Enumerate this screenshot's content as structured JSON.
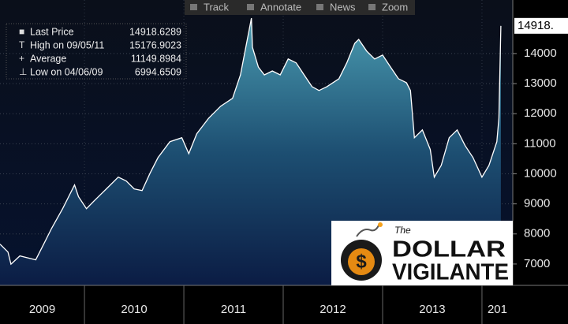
{
  "toolbar": [
    "Track",
    "Annotate",
    "News",
    "Zoom"
  ],
  "logo": {
    "small": "The",
    "line1": "DOLLAR",
    "line2": "VIGILANTE",
    "symbol": "$"
  },
  "chart_data": {
    "type": "area",
    "legend": [
      {
        "label": "Last Price",
        "value": 14918.6289
      },
      {
        "label": "High on 09/05/11",
        "value": 15176.9023
      },
      {
        "label": "Average",
        "value": 11149.8984
      },
      {
        "label": "Low on 04/06/09",
        "value": 6994.6509
      }
    ],
    "last_label": "14918.",
    "color": "#ffffff",
    "x": [
      2009.15,
      2009.23,
      2009.26,
      2009.35,
      2009.51,
      2009.59,
      2009.67,
      2009.78,
      2009.9,
      2009.94,
      2010.02,
      2010.1,
      2010.22,
      2010.34,
      2010.42,
      2010.5,
      2010.58,
      2010.66,
      2010.74,
      2010.86,
      2010.98,
      2011.05,
      2011.13,
      2011.25,
      2011.37,
      2011.49,
      2011.57,
      2011.68,
      2011.69,
      2011.75,
      2011.81,
      2011.89,
      2011.97,
      2012.05,
      2012.13,
      2012.21,
      2012.29,
      2012.36,
      2012.44,
      2012.56,
      2012.64,
      2012.72,
      2012.76,
      2012.84,
      2012.92,
      2013.0,
      2013.08,
      2013.16,
      2013.24,
      2013.28,
      2013.32,
      2013.4,
      2013.48,
      2013.52,
      2013.59,
      2013.67,
      2013.75,
      2013.83,
      2013.91,
      2014.0,
      2014.07,
      2014.15,
      2014.17,
      2014.19
    ],
    "values": [
      7660,
      7400,
      6995,
      7270,
      7140,
      7660,
      8190,
      8840,
      9630,
      9240,
      8840,
      9110,
      9500,
      9890,
      9760,
      9500,
      9440,
      10020,
      10540,
      11070,
      11200,
      10670,
      11330,
      11850,
      12250,
      12510,
      13290,
      15177,
      14210,
      13550,
      13290,
      13420,
      13290,
      13820,
      13690,
      13290,
      12900,
      12770,
      12900,
      13160,
      13690,
      14340,
      14470,
      14080,
      13820,
      13950,
      13550,
      13160,
      13030,
      12770,
      11200,
      11460,
      10810,
      9890,
      10280,
      11200,
      11460,
      10940,
      10540,
      9890,
      10280,
      11070,
      11850,
      14920
    ],
    "xlim": [
      2009.15,
      2014.31
    ],
    "xticks": [
      2009,
      2010,
      2011,
      2012,
      2013,
      {
        "value": 2014,
        "label": "201"
      }
    ],
    "ylim": [
      6290,
      15780
    ],
    "yticks": [
      7000,
      8000,
      9000,
      10000,
      11000,
      12000,
      13000,
      14000
    ],
    "grid": true
  }
}
